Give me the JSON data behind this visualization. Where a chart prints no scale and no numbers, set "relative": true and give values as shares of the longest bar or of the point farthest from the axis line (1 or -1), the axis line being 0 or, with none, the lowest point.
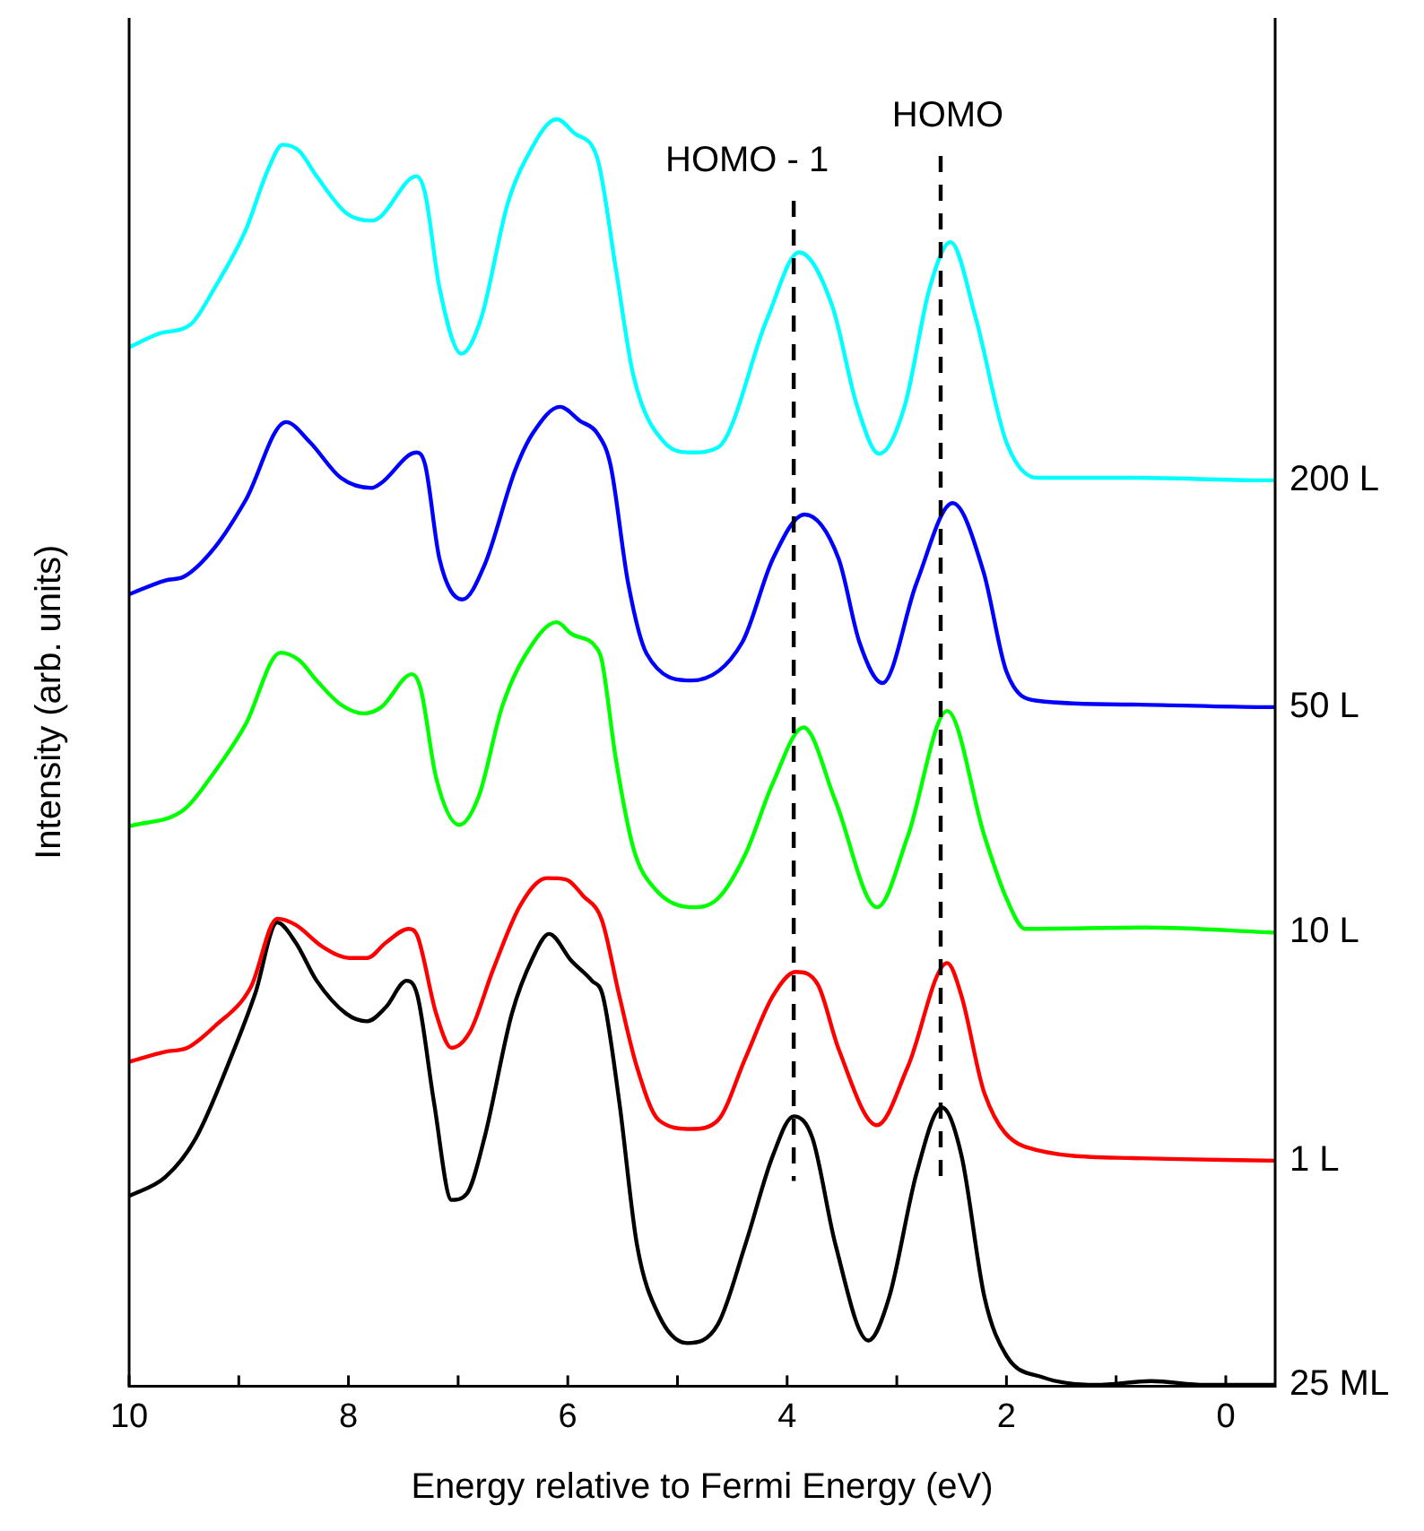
{
  "chart_data": {
    "type": "line",
    "relative": true,
    "xlabel": "Energy relative to Fermi Energy (eV)",
    "ylabel": "Intensity (arb. units)",
    "xlim": [
      10,
      -0.45
    ],
    "xticks": [
      10,
      {
        "value": 9,
        "label": null
      },
      8,
      {
        "value": 7,
        "label": null
      },
      6,
      {
        "value": 5,
        "label": null
      },
      4,
      {
        "value": 3,
        "label": null
      },
      2,
      {
        "value": 1,
        "label": null
      },
      0
    ],
    "grid": false,
    "legend": false,
    "marker": "none",
    "line_style": "solid",
    "tick_labels": "x",
    "ref_lines": [
      {
        "axis": "x",
        "value": 3.94,
        "label": "HOMO - 1",
        "color": "#000000",
        "line_style": "dashed"
      },
      {
        "axis": "x",
        "value": 2.6,
        "label": "HOMO",
        "color": "#000000",
        "line_style": "dashed"
      }
    ],
    "series": [
      {
        "name": "200 L",
        "color": "#00ffff",
        "x": [
          10,
          9.72,
          9.44,
          9.22,
          8.94,
          8.73,
          8.6,
          8.45,
          8.29,
          8.02,
          7.79,
          7.71,
          7.38,
          7.3,
          7.17,
          6.97,
          6.79,
          6.55,
          6.38,
          6.1,
          5.94,
          5.73,
          5.56,
          5.4,
          5.12,
          4.87,
          4.63,
          4.18,
          3.89,
          3.59,
          3.36,
          3.16,
          2.93,
          2.7,
          2.51,
          2.28,
          2,
          1.72,
          0.85,
          -0.35,
          -0.45
        ],
        "values": [
          0.82,
          0.831,
          0.838,
          0.867,
          0.912,
          0.961,
          0.98,
          0.975,
          0.955,
          0.926,
          0.92,
          0.923,
          0.955,
          0.941,
          0.867,
          0.815,
          0.843,
          0.933,
          0.969,
          1,
          0.989,
          0.969,
          0.881,
          0.797,
          0.745,
          0.737,
          0.741,
          0.843,
          0.895,
          0.853,
          0.773,
          0.736,
          0.773,
          0.867,
          0.903,
          0.843,
          0.745,
          0.717,
          0.717,
          0.715,
          0.715
        ]
      },
      {
        "name": "50 L",
        "color": "#0000ff",
        "x": [
          10,
          9.67,
          9.5,
          9.22,
          8.94,
          8.57,
          8.35,
          8.07,
          7.79,
          7.7,
          7.38,
          7.3,
          7.17,
          6.96,
          6.76,
          6.48,
          6.32,
          6.07,
          5.89,
          5.73,
          5.61,
          5.45,
          5.28,
          4.87,
          4.41,
          4.13,
          3.84,
          3.53,
          3.34,
          3.13,
          2.82,
          2.49,
          2.21,
          2,
          1.72,
          0.85,
          -0.35,
          -0.45
        ],
        "values": [
          0.625,
          0.636,
          0.639,
          0.662,
          0.699,
          0.761,
          0.745,
          0.717,
          0.709,
          0.713,
          0.737,
          0.727,
          0.653,
          0.621,
          0.648,
          0.723,
          0.752,
          0.773,
          0.762,
          0.752,
          0.727,
          0.634,
          0.578,
          0.557,
          0.587,
          0.653,
          0.688,
          0.653,
          0.587,
          0.555,
          0.634,
          0.697,
          0.643,
          0.564,
          0.541,
          0.538,
          0.536,
          0.536
        ]
      },
      {
        "name": "10 L",
        "color": "#00ff00",
        "x": [
          10,
          9.5,
          9.22,
          8.94,
          8.62,
          8.45,
          8.29,
          8.07,
          7.86,
          7.7,
          7.42,
          7.34,
          7.2,
          6.99,
          6.81,
          6.6,
          6.38,
          6.1,
          5.97,
          5.74,
          5.69,
          5.56,
          5.4,
          5.2,
          4.87,
          4.63,
          4.38,
          4.13,
          3.85,
          3.56,
          3.18,
          2.9,
          2.54,
          2.2,
          2,
          1.83,
          0.73,
          -0.45
        ],
        "values": [
          0.442,
          0.455,
          0.485,
          0.522,
          0.579,
          0.573,
          0.557,
          0.538,
          0.531,
          0.536,
          0.562,
          0.55,
          0.48,
          0.443,
          0.466,
          0.536,
          0.578,
          0.603,
          0.594,
          0.583,
          0.573,
          0.494,
          0.424,
          0.392,
          0.378,
          0.385,
          0.42,
          0.476,
          0.52,
          0.462,
          0.378,
          0.434,
          0.533,
          0.434,
          0.385,
          0.361,
          0.362,
          0.358
        ]
      },
      {
        "name": "1 L",
        "color": "#ff0000",
        "x": [
          10,
          9.67,
          9.47,
          9.22,
          8.89,
          8.65,
          8.48,
          8.24,
          7.99,
          7.83,
          7.66,
          7.45,
          7.37,
          7.2,
          7.06,
          6.89,
          6.68,
          6.43,
          6.19,
          6.02,
          5.86,
          5.69,
          5.53,
          5.37,
          5.17,
          4.87,
          4.63,
          4.38,
          4.13,
          3.92,
          3.72,
          3.53,
          3.18,
          2.9,
          2.54,
          2.41,
          2.2,
          1.83,
          0.85,
          0.31,
          -0.45
        ],
        "values": [
          0.256,
          0.264,
          0.267,
          0.284,
          0.315,
          0.369,
          0.364,
          0.347,
          0.338,
          0.338,
          0.35,
          0.361,
          0.355,
          0.294,
          0.267,
          0.28,
          0.329,
          0.38,
          0.401,
          0.4,
          0.387,
          0.368,
          0.308,
          0.252,
          0.21,
          0.203,
          0.21,
          0.259,
          0.308,
          0.327,
          0.317,
          0.266,
          0.206,
          0.252,
          0.334,
          0.308,
          0.231,
          0.189,
          0.18,
          0.179,
          0.178
        ]
      },
      {
        "name": "25 ML",
        "color": "#000000",
        "x": [
          10,
          9.67,
          9.39,
          9.06,
          8.85,
          8.65,
          8.48,
          8.29,
          8.02,
          7.83,
          7.66,
          7.47,
          7.37,
          7.22,
          7.06,
          6.92,
          6.76,
          6.51,
          6.32,
          6.17,
          5.97,
          5.78,
          5.68,
          5.53,
          5.37,
          5.17,
          4.91,
          4.63,
          4.38,
          4.13,
          3.94,
          3.77,
          3.56,
          3.26,
          3.07,
          2.82,
          2.59,
          2.41,
          2.2,
          2,
          1.67,
          1.18,
          0.68,
          0.19,
          -0.45
        ],
        "values": [
          0.15,
          0.165,
          0.196,
          0.262,
          0.31,
          0.366,
          0.35,
          0.32,
          0.294,
          0.288,
          0.299,
          0.32,
          0.308,
          0.224,
          0.147,
          0.152,
          0.196,
          0.294,
          0.338,
          0.357,
          0.336,
          0.32,
          0.308,
          0.224,
          0.112,
          0.056,
          0.034,
          0.049,
          0.112,
          0.182,
          0.213,
          0.196,
          0.112,
          0.036,
          0.07,
          0.168,
          0.22,
          0.182,
          0.07,
          0.024,
          0.007,
          0.001,
          0.004,
          0.001,
          0.001
        ]
      }
    ]
  }
}
